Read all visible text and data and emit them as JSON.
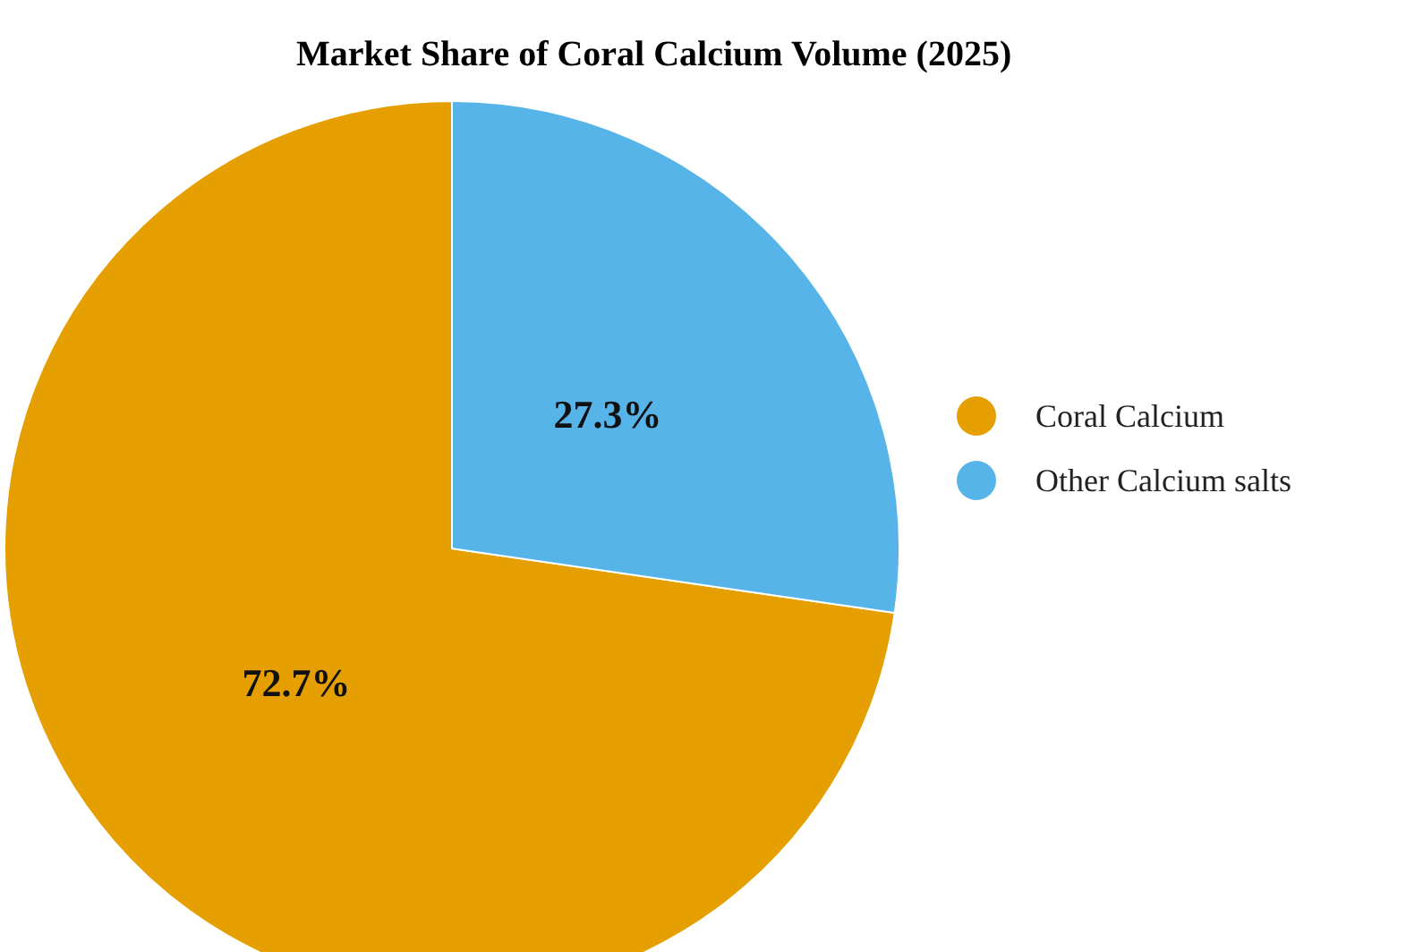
{
  "chart_data": {
    "type": "pie",
    "title": "Market Share of Coral Calcium Volume (2025)",
    "categories": [
      "Coral Calcium",
      "Other Calcium salts"
    ],
    "values": [
      72.7,
      27.3
    ],
    "colors": [
      "#e69f00",
      "#56b4e9"
    ],
    "value_labels": [
      "72.7%",
      "27.3%"
    ],
    "legend": "right"
  }
}
